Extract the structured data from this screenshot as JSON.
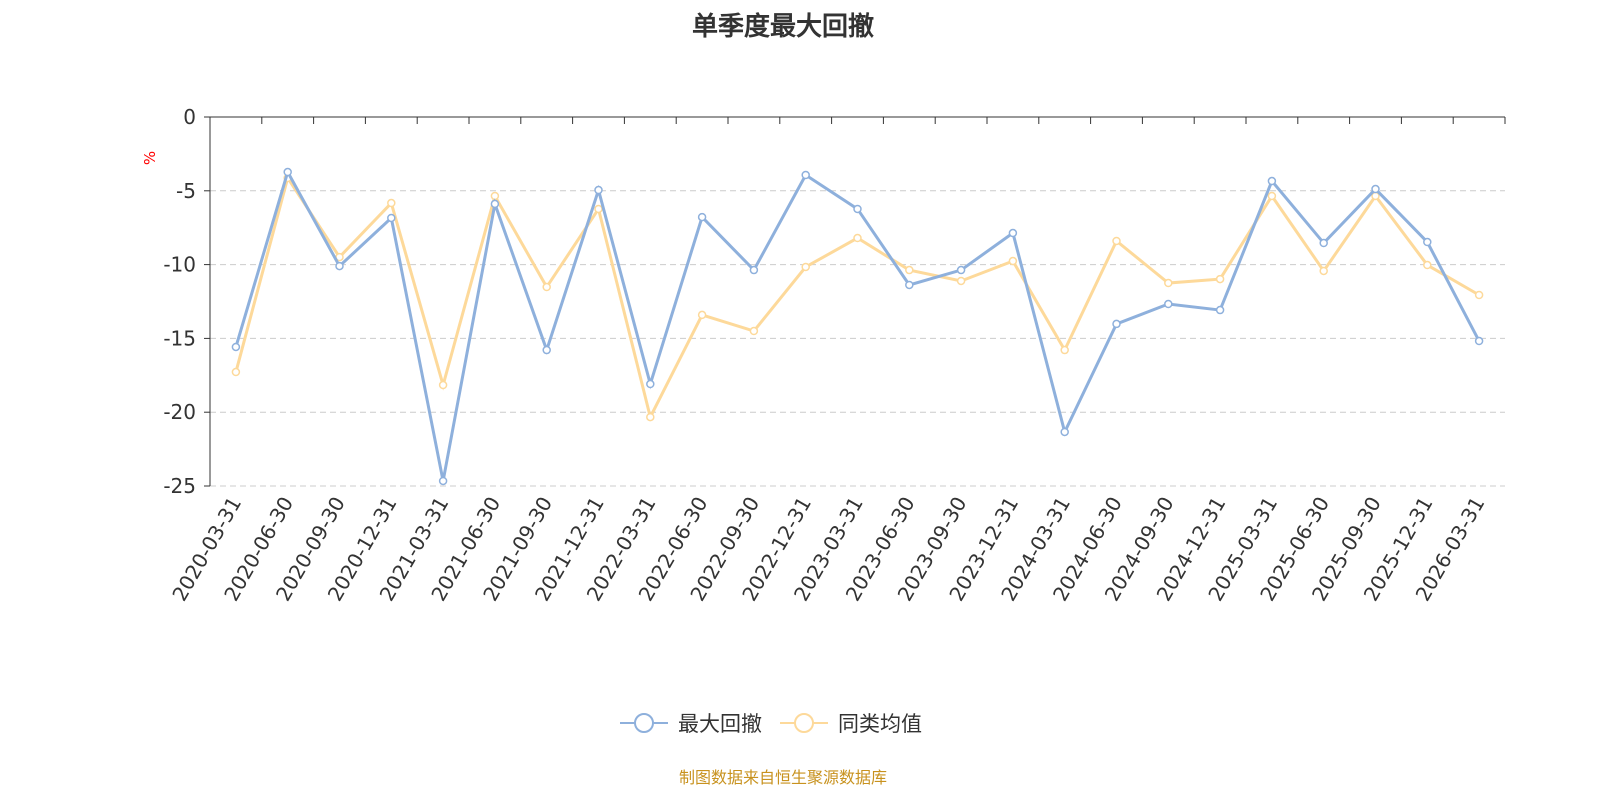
{
  "chart_data": {
    "type": "line",
    "title": "单季度最大回撤",
    "ylabel": "%",
    "ylim": [
      -25,
      0
    ],
    "yticks": [
      0,
      -5,
      -10,
      -15,
      -20,
      -25
    ],
    "grid": true,
    "legend_position": "bottom",
    "categories": [
      "2020-03-31",
      "2020-06-30",
      "2020-09-30",
      "2020-12-31",
      "2021-03-31",
      "2021-06-30",
      "2021-09-30",
      "2021-12-31",
      "2022-03-31",
      "2022-06-30",
      "2022-09-30",
      "2022-12-31",
      "2023-03-31",
      "2023-06-30",
      "2023-09-30",
      "2023-12-31",
      "2024-03-31",
      "2024-06-30",
      "2024-09-30",
      "2024-12-31",
      "2025-03-31",
      "2025-06-30",
      "2025-09-30",
      "2025-12-31",
      "2026-03-31"
    ],
    "series": [
      {
        "name": "最大回撤",
        "color": "#8eb0dc",
        "values": [
          -15.58,
          -3.73,
          -10.1,
          -6.84,
          -24.66,
          -5.89,
          -15.79,
          -4.95,
          -18.09,
          -6.78,
          -10.37,
          -3.93,
          -6.23,
          -11.38,
          -10.37,
          -7.86,
          -21.34,
          -14.02,
          -12.67,
          -13.08,
          -4.34,
          -8.54,
          -4.88,
          -8.47,
          -15.18
        ]
      },
      {
        "name": "同类均值",
        "color": "#fdd99a",
        "values": [
          -17.28,
          -4.13,
          -9.49,
          -5.83,
          -18.16,
          -5.35,
          -11.52,
          -6.23,
          -20.33,
          -13.41,
          -14.5,
          -10.16,
          -8.2,
          -10.37,
          -11.11,
          -9.76,
          -15.79,
          -8.4,
          -11.25,
          -10.98,
          -5.35,
          -10.43,
          -5.35,
          -10.03,
          -12.06
        ]
      }
    ]
  },
  "source": "制图数据来自恒生聚源数据库"
}
